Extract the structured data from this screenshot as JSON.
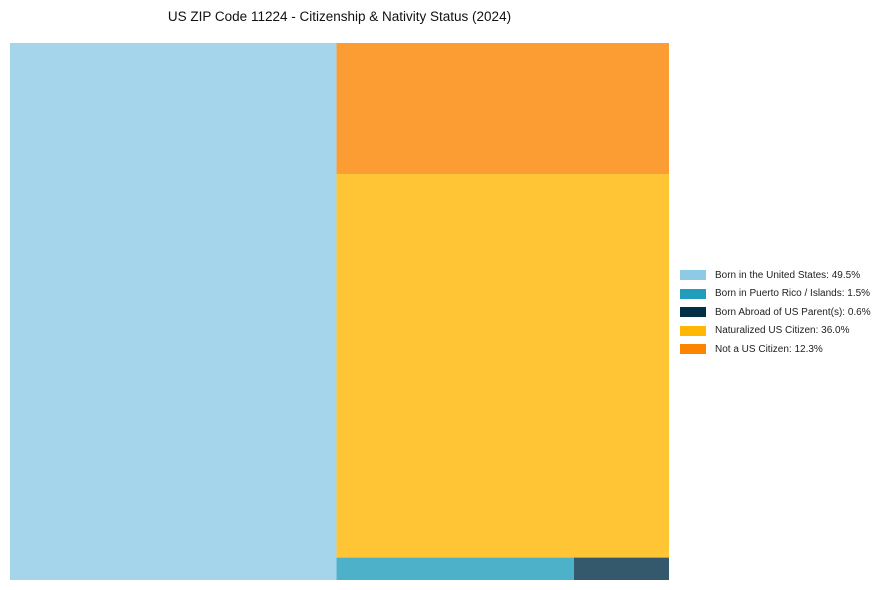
{
  "chart_data": {
    "type": "treemap",
    "title": "US ZIP Code 11224 - Citizenship & Nativity Status (2024)",
    "legend_position": "right",
    "series": [
      {
        "name": "Born in the United States",
        "value": 49.5,
        "color": "#8ecae6",
        "label": "Born in the United States: 49.5%"
      },
      {
        "name": "Born in Puerto Rico / Islands",
        "value": 1.5,
        "color": "#219ebc",
        "label": "Born in Puerto Rico / Islands: 1.5%"
      },
      {
        "name": "Born Abroad of US Parent(s)",
        "value": 0.6,
        "color": "#023047",
        "label": "Born Abroad of US Parent(s): 0.6%"
      },
      {
        "name": "Naturalized US Citizen",
        "value": 36.0,
        "color": "#ffb703",
        "label": "Naturalized US Citizen: 36.0%"
      },
      {
        "name": "Not a US Citizen",
        "value": 12.3,
        "color": "#fb8500",
        "label": "Not a US Citizen: 12.3%"
      }
    ]
  }
}
